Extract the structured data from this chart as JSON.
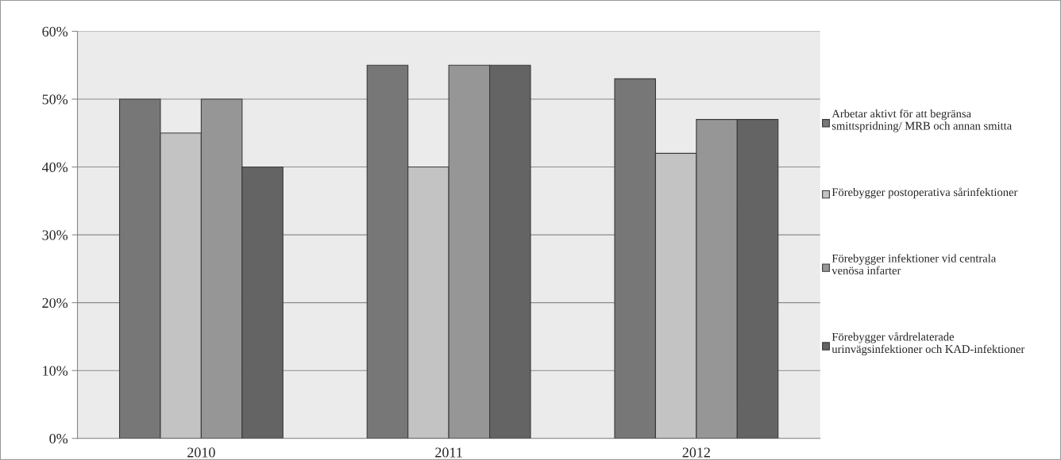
{
  "chart_data": {
    "type": "bar",
    "categories": [
      "2010",
      "2011",
      "2012"
    ],
    "series": [
      {
        "name": "Arbetar aktivt för att begränsa smittspridning/ MRB och annan smitta",
        "color": "#777777",
        "values": [
          50,
          55,
          53
        ]
      },
      {
        "name": "Förebygger postoperativa sårinfektioner",
        "color": "#c3c3c3",
        "values": [
          45,
          40,
          42
        ]
      },
      {
        "name": "Förebygger infektioner vid centrala venösa infarter",
        "color": "#969696",
        "values": [
          50,
          55,
          47
        ]
      },
      {
        "name": "Förebygger vårdrelaterade urinvägsinfektioner och KAD-infektioner",
        "color": "#646464",
        "values": [
          40,
          55,
          47
        ]
      }
    ],
    "ylim": [
      0,
      60
    ],
    "yticks": [
      {
        "value": 0,
        "label": "0%"
      },
      {
        "value": 10,
        "label": "10%"
      },
      {
        "value": 20,
        "label": "20%"
      },
      {
        "value": 30,
        "label": "30%"
      },
      {
        "value": 40,
        "label": "40%"
      },
      {
        "value": 50,
        "label": "50%"
      },
      {
        "value": 60,
        "label": "60%"
      }
    ],
    "grid": "y",
    "legend": "right"
  }
}
